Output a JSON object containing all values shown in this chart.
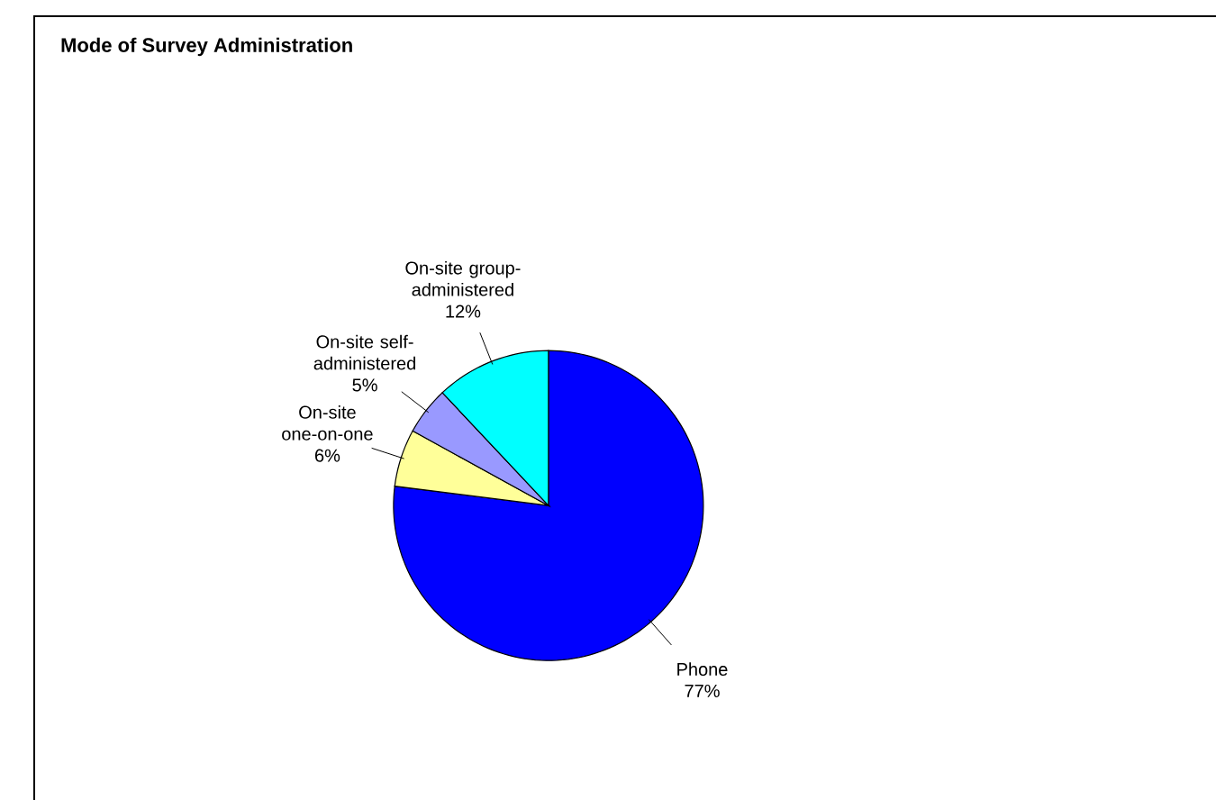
{
  "chart_data": {
    "type": "pie",
    "title": "Mode of Survey Administration",
    "categories": [
      "Phone",
      "On-site one-on-one",
      "On-site self-administered",
      "On-site group-administered"
    ],
    "values": [
      77,
      6,
      5,
      12
    ],
    "value_labels": [
      "77%",
      "6%",
      "5%",
      "12%"
    ],
    "colors": [
      "#0000ff",
      "#ffff99",
      "#9999ff",
      "#00ffff"
    ]
  }
}
